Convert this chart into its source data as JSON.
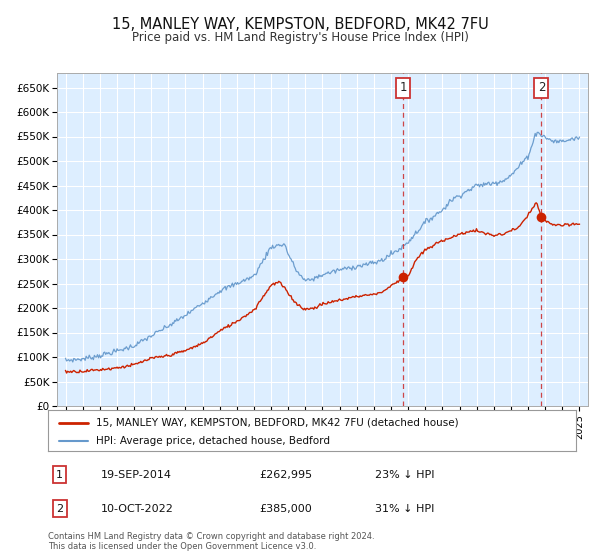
{
  "title": "15, MANLEY WAY, KEMPSTON, BEDFORD, MK42 7FU",
  "subtitle": "Price paid vs. HM Land Registry's House Price Index (HPI)",
  "title_fontsize": 10.5,
  "subtitle_fontsize": 8.5,
  "background_color": "#ffffff",
  "plot_bg_color": "#ddeeff",
  "grid_color": "#ffffff",
  "hpi_color": "#6699cc",
  "price_color": "#cc2200",
  "marker1_date": 2014.72,
  "marker1_price": 262995,
  "marker2_date": 2022.78,
  "marker2_price": 385000,
  "vline_color": "#cc3333",
  "annotation1": [
    "1",
    "19-SEP-2014",
    "£262,995",
    "23% ↓ HPI"
  ],
  "annotation2": [
    "2",
    "10-OCT-2022",
    "£385,000",
    "31% ↓ HPI"
  ],
  "legend_label1": "15, MANLEY WAY, KEMPSTON, BEDFORD, MK42 7FU (detached house)",
  "legend_label2": "HPI: Average price, detached house, Bedford",
  "footer": "Contains HM Land Registry data © Crown copyright and database right 2024.\nThis data is licensed under the Open Government Licence v3.0.",
  "ylim": [
    0,
    680000
  ],
  "xlim_start": 1994.5,
  "xlim_end": 2025.5,
  "yticks": [
    0,
    50000,
    100000,
    150000,
    200000,
    250000,
    300000,
    350000,
    400000,
    450000,
    500000,
    550000,
    600000,
    650000
  ],
  "ytick_labels": [
    "£0",
    "£50K",
    "£100K",
    "£150K",
    "£200K",
    "£250K",
    "£300K",
    "£350K",
    "£400K",
    "£450K",
    "£500K",
    "£550K",
    "£600K",
    "£650K"
  ],
  "xticks": [
    1995,
    1996,
    1997,
    1998,
    1999,
    2000,
    2001,
    2002,
    2003,
    2004,
    2005,
    2006,
    2007,
    2008,
    2009,
    2010,
    2011,
    2012,
    2013,
    2014,
    2015,
    2016,
    2017,
    2018,
    2019,
    2020,
    2021,
    2022,
    2023,
    2024,
    2025
  ],
  "hpi_anchors_x": [
    1995,
    1996,
    1997,
    1998,
    1999,
    2000,
    2001,
    2002,
    2003,
    2004,
    2005,
    2006,
    2007,
    2007.8,
    2008,
    2008.5,
    2009,
    2009.5,
    2010,
    2011,
    2012,
    2013,
    2013.5,
    2014,
    2014.5,
    2015,
    2016,
    2017,
    2017.5,
    2018,
    2019,
    2020,
    2020.5,
    2021,
    2021.5,
    2022,
    2022.5,
    2023,
    2023.5,
    2024,
    2025
  ],
  "hpi_anchors_y": [
    93000,
    96000,
    103000,
    112000,
    123000,
    143000,
    163000,
    185000,
    210000,
    235000,
    250000,
    265000,
    325000,
    330000,
    310000,
    275000,
    255000,
    260000,
    268000,
    278000,
    285000,
    292000,
    298000,
    310000,
    320000,
    335000,
    375000,
    400000,
    420000,
    430000,
    450000,
    455000,
    460000,
    470000,
    490000,
    510000,
    560000,
    548000,
    540000,
    540000,
    548000
  ],
  "price_anchors_x": [
    1995,
    1996,
    1997,
    1998,
    1999,
    2000,
    2001,
    2002,
    2003,
    2004,
    2005,
    2006,
    2007,
    2007.5,
    2008,
    2008.5,
    2009,
    2009.5,
    2010,
    2011,
    2012,
    2013,
    2013.5,
    2014,
    2014.72,
    2015,
    2015.5,
    2016,
    2017,
    2018,
    2018.5,
    2019,
    2019.5,
    2020,
    2020.5,
    2021,
    2021.5,
    2022,
    2022.5,
    2022.78,
    2023,
    2023.5,
    2024,
    2025
  ],
  "price_anchors_y": [
    70000,
    71000,
    74000,
    78000,
    84000,
    97000,
    103000,
    113000,
    128000,
    153000,
    173000,
    196000,
    247000,
    253000,
    230000,
    208000,
    197000,
    200000,
    208000,
    216000,
    224000,
    228000,
    233000,
    245000,
    262995,
    265000,
    300000,
    318000,
    338000,
    350000,
    356000,
    358000,
    352000,
    348000,
    350000,
    358000,
    365000,
    390000,
    415000,
    385000,
    378000,
    370000,
    368000,
    372000
  ]
}
